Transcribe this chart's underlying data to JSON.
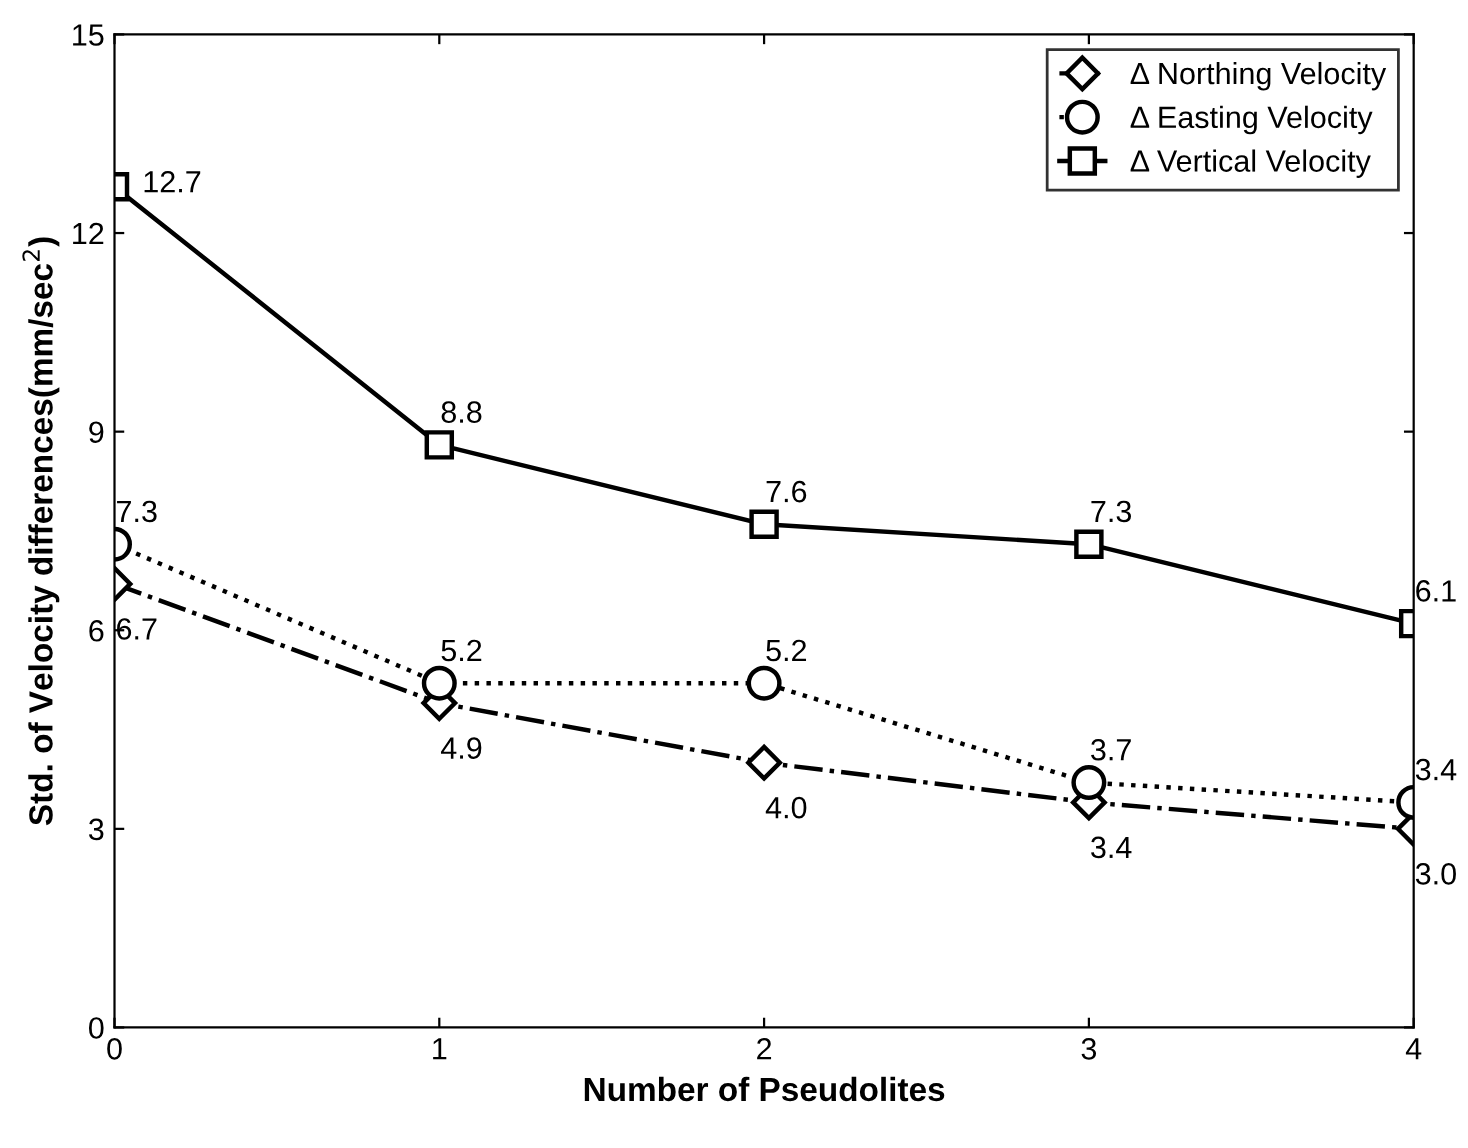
{
  "chart_data": {
    "type": "line",
    "xlabel": "Number of Pseudolites",
    "ylabel": "Std. of Velocity differences(mm/sec$^{2}$)",
    "x": [
      0,
      1,
      2,
      3,
      4
    ],
    "xlim": [
      0,
      4
    ],
    "xticks": [
      0,
      1,
      2,
      3,
      4
    ],
    "ylim": [
      0,
      15
    ],
    "yticks": [
      0,
      3,
      6,
      9,
      12,
      15
    ],
    "series": [
      {
        "name": "Δ Northing Velocity",
        "color": "#000000",
        "marker": "diamond",
        "line_style": "dashdot",
        "values": [
          6.7,
          4.9,
          4.0,
          3.4,
          3.0
        ],
        "value_labels": [
          "6.7",
          "4.9",
          "4.0",
          "3.4",
          "3.0"
        ]
      },
      {
        "name": "Δ Easting Velocity",
        "color": "#000000",
        "marker": "circle",
        "line_style": "dotted",
        "values": [
          7.3,
          5.2,
          5.2,
          3.7,
          3.4
        ],
        "value_labels": [
          "7.3",
          "5.2",
          "5.2",
          "3.7",
          "3.4"
        ]
      },
      {
        "name": "Δ Vertical Velocity",
        "color": "#000000",
        "marker": "square",
        "line_style": "solid",
        "values": [
          12.7,
          8.8,
          7.6,
          7.3,
          6.1
        ],
        "value_labels": [
          "12.7",
          "8.8",
          "7.6",
          "7.3",
          "6.1"
        ]
      }
    ],
    "legend": "top right",
    "grid": false
  }
}
